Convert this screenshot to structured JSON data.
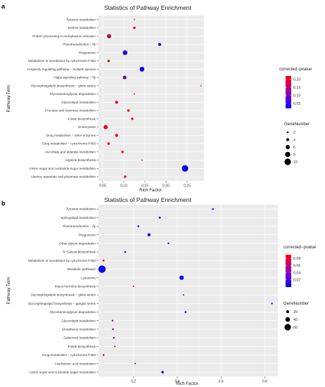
{
  "chart_data": [
    {
      "panel_label": "a",
      "type": "scatter",
      "title": "Statistics of Pathway Enrichment",
      "xlabel": "Rich Factor",
      "ylabel": "Pathway Term",
      "xlim": [
        0.04,
        0.29
      ],
      "xticks": [
        0.05,
        0.1,
        0.15,
        0.2,
        0.25
      ],
      "xtick_labels": [
        "0.05",
        "0.10",
        "0.15",
        "0.20",
        "0.25"
      ],
      "grid": true,
      "color_legend": {
        "title": "corrected−pvalue",
        "ticks": [
          "0.20",
          "0.15",
          "0.10",
          "0.05"
        ],
        "tick_values": [
          0.2,
          0.15,
          0.1,
          0.05
        ],
        "min": 0.02,
        "max": 0.22,
        "low_color": "#0000ff",
        "high_color": "#ff0000"
      },
      "size_legend": {
        "title": "GeneNumber",
        "values": [
          2,
          4,
          6,
          8,
          10
        ],
        "labels": [
          "2",
          "4",
          "6",
          "8",
          "10"
        ],
        "min": 1,
        "max": 11
      },
      "points": [
        {
          "term": "Tyrosine metabolism",
          "rich_factor": 0.125,
          "gene_number": 1,
          "pvalue": 0.21
        },
        {
          "term": "Retinol metabolism",
          "rich_factor": 0.125,
          "gene_number": 3,
          "pvalue": 0.19
        },
        {
          "term": "Protein processing in endoplasmic reticulum",
          "rich_factor": 0.065,
          "gene_number": 6,
          "pvalue": 0.17
        },
        {
          "term": "Phototransduction − fly",
          "rich_factor": 0.185,
          "gene_number": 4,
          "pvalue": 0.05
        },
        {
          "term": "Phagosome",
          "rich_factor": 0.103,
          "gene_number": 7,
          "pvalue": 0.05
        },
        {
          "term": "Metabolism of xenobiotics by cytochrome P450",
          "rich_factor": 0.064,
          "gene_number": 3,
          "pvalue": 0.2
        },
        {
          "term": "Longevity regulating pathway − multiple species",
          "rich_factor": 0.143,
          "gene_number": 7,
          "pvalue": 0.03
        },
        {
          "term": "Hippo signaling pathway − fly",
          "rich_factor": 0.102,
          "gene_number": 5,
          "pvalue": 0.09
        },
        {
          "term": "Glycosphingolipid biosynthesis − globo series",
          "rich_factor": 0.283,
          "gene_number": 1,
          "pvalue": 0.2
        },
        {
          "term": "Glycosaminoglycan degradation",
          "rich_factor": 0.125,
          "gene_number": 1,
          "pvalue": 0.21
        },
        {
          "term": "Glycerolipid metabolism",
          "rich_factor": 0.083,
          "gene_number": 4,
          "pvalue": 0.2
        },
        {
          "term": "Fructose and mannose metabolism",
          "rich_factor": 0.111,
          "gene_number": 3,
          "pvalue": 0.21
        },
        {
          "term": "Folate biosynthesis",
          "rich_factor": 0.12,
          "gene_number": 3,
          "pvalue": 0.2
        },
        {
          "term": "Endocytosis",
          "rich_factor": 0.057,
          "gene_number": 6,
          "pvalue": 0.2
        },
        {
          "term": "Drug metabolism − other enzymes",
          "rich_factor": 0.083,
          "gene_number": 4,
          "pvalue": 0.2
        },
        {
          "term": "Drug metabolism − cytochrome P450",
          "rich_factor": 0.064,
          "gene_number": 3,
          "pvalue": 0.2
        },
        {
          "term": "Ascorbate and aldarate metabolism",
          "rich_factor": 0.097,
          "gene_number": 3,
          "pvalue": 0.21
        },
        {
          "term": "Arginine biosynthesis",
          "rich_factor": 0.143,
          "gene_number": 1,
          "pvalue": 0.21
        },
        {
          "term": "Amino sugar and nucleotide sugar metabolism",
          "rich_factor": 0.245,
          "gene_number": 10,
          "pvalue": 0.03
        },
        {
          "term": "Alanine, aspartate and glutamate metabolism",
          "rich_factor": 0.103,
          "gene_number": 3,
          "pvalue": 0.2
        }
      ]
    },
    {
      "panel_label": "b",
      "type": "scatter",
      "title": "Statistics of Pathway Enrichment",
      "xlabel": "Rich Factor",
      "ylabel": "Pathway Term",
      "xlim": [
        0.04,
        0.86
      ],
      "xticks": [
        0.2,
        0.4,
        0.6,
        0.8
      ],
      "xtick_labels": [
        "0.2",
        "0.4",
        "0.6",
        "0.8"
      ],
      "grid": true,
      "color_legend": {
        "title": "corrected−pvalue",
        "ticks": [
          "0.08",
          "0.06",
          "0.04",
          "0.02"
        ],
        "tick_values": [
          0.08,
          0.06,
          0.04,
          0.02
        ],
        "min": 0.0,
        "max": 0.09,
        "low_color": "#0000ff",
        "high_color": "#ff0000"
      },
      "size_legend": {
        "title": "GeneNumber",
        "values": [
          20,
          40,
          60
        ],
        "labels": [
          "20",
          "40",
          "60"
        ],
        "min": 1,
        "max": 70
      },
      "points": [
        {
          "term": "Tyrosine metabolism",
          "rich_factor": 0.563,
          "gene_number": 5,
          "pvalue": 0.005
        },
        {
          "term": "Sphingolipid metabolism",
          "rich_factor": 0.32,
          "gene_number": 9,
          "pvalue": 0.01
        },
        {
          "term": "Phototransduction − fly",
          "rich_factor": 0.222,
          "gene_number": 6,
          "pvalue": 0.015
        },
        {
          "term": "Phagosome",
          "rich_factor": 0.271,
          "gene_number": 20,
          "pvalue": 0.005
        },
        {
          "term": "Other glycan degradation",
          "rich_factor": 0.36,
          "gene_number": 5,
          "pvalue": 0.01
        },
        {
          "term": "N−Glycan biosynthesis",
          "rich_factor": 0.162,
          "gene_number": 6,
          "pvalue": 0.025
        },
        {
          "term": "Metabolism of xenobiotics by cytochrome P450",
          "rich_factor": 0.063,
          "gene_number": 7,
          "pvalue": 0.08
        },
        {
          "term": "Metabolic pathways",
          "rich_factor": 0.056,
          "gene_number": 70,
          "pvalue": 0.004
        },
        {
          "term": "Lysosome",
          "rich_factor": 0.42,
          "gene_number": 35,
          "pvalue": 0.003
        },
        {
          "term": "Insect hormone biosynthesis",
          "rich_factor": 0.2,
          "gene_number": 1,
          "pvalue": 0.08
        },
        {
          "term": "Glycosphingolipid biosynthesis − globo series",
          "rich_factor": 0.429,
          "gene_number": 1,
          "pvalue": 0.03
        },
        {
          "term": "Glycosphingolipid biosynthesis − ganglio series",
          "rich_factor": 0.833,
          "gene_number": 4,
          "pvalue": 0.005
        },
        {
          "term": "Glycosaminoglycan degradation",
          "rich_factor": 0.438,
          "gene_number": 6,
          "pvalue": 0.005
        },
        {
          "term": "Glycerolipid metabolism",
          "rich_factor": 0.104,
          "gene_number": 5,
          "pvalue": 0.05
        },
        {
          "term": "Glutathione metabolism",
          "rich_factor": 0.106,
          "gene_number": 5,
          "pvalue": 0.035
        },
        {
          "term": "Galactose metabolism",
          "rich_factor": 0.11,
          "gene_number": 5,
          "pvalue": 0.05
        },
        {
          "term": "Folate biosynthesis",
          "rich_factor": 0.115,
          "gene_number": 2,
          "pvalue": 0.08
        },
        {
          "term": "Drug metabolism − cytochrome P450",
          "rich_factor": 0.063,
          "gene_number": 6,
          "pvalue": 0.08
        },
        {
          "term": "Arachidonic acid metabolism",
          "rich_factor": 0.208,
          "gene_number": 2,
          "pvalue": 0.04
        },
        {
          "term": "Amino sugar and nucleotide sugar metabolism",
          "rich_factor": 0.333,
          "gene_number": 14,
          "pvalue": 0.005
        }
      ]
    }
  ]
}
